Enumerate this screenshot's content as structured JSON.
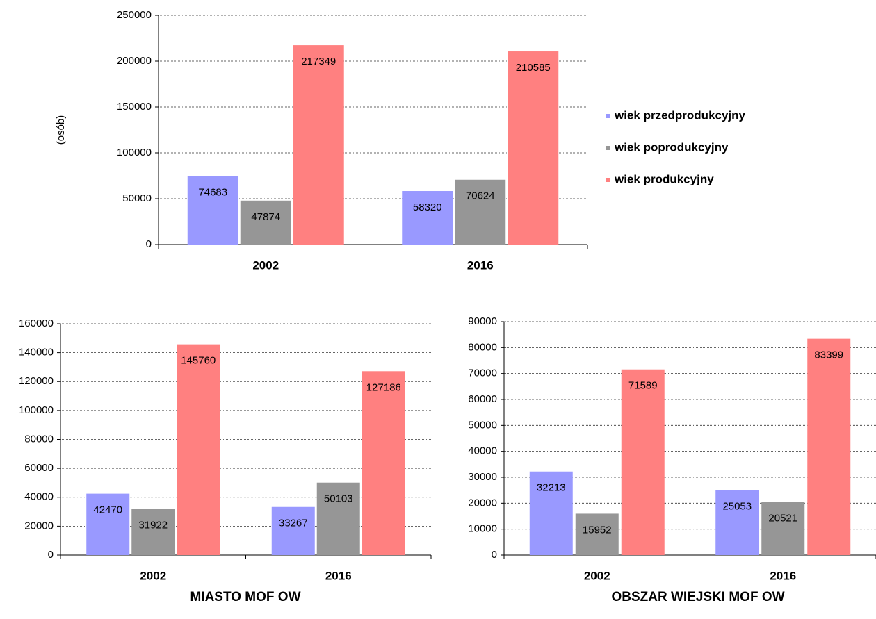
{
  "chart_data": [
    {
      "type": "bar",
      "ylabel": "(osób)",
      "categories": [
        "2002",
        "2016"
      ],
      "series": [
        {
          "name": "wiek przedprodukcyjny",
          "color": "#9999ff",
          "values": [
            74683,
            58320
          ]
        },
        {
          "name": "wiek poprodukcyjny",
          "color": "#969696",
          "values": [
            47874,
            70624
          ]
        },
        {
          "name": "wiek produkcyjny",
          "color": "#ff8080",
          "values": [
            217349,
            210585
          ]
        }
      ],
      "ylim": [
        0,
        250000
      ],
      "yticks": [
        0,
        50000,
        100000,
        150000,
        200000,
        250000
      ],
      "grid": true,
      "legend": "right"
    },
    {
      "type": "bar",
      "title": "MIASTO MOF OW",
      "categories": [
        "2002",
        "2016"
      ],
      "series": [
        {
          "color": "#9999ff",
          "values": [
            42470,
            33267
          ]
        },
        {
          "color": "#969696",
          "values": [
            31922,
            50103
          ]
        },
        {
          "color": "#ff8080",
          "values": [
            145760,
            127186
          ]
        }
      ],
      "ylim": [
        0,
        160000
      ],
      "yticks": [
        0,
        20000,
        40000,
        60000,
        80000,
        100000,
        120000,
        140000,
        160000
      ],
      "grid": true
    },
    {
      "type": "bar",
      "title": "OBSZAR WIEJSKI MOF OW",
      "categories": [
        "2002",
        "2016"
      ],
      "series": [
        {
          "color": "#9999ff",
          "values": [
            32213,
            25053
          ]
        },
        {
          "color": "#969696",
          "values": [
            15952,
            20521
          ]
        },
        {
          "color": "#ff8080",
          "values": [
            71589,
            83399
          ]
        }
      ],
      "ylim": [
        0,
        90000
      ],
      "yticks": [
        0,
        10000,
        20000,
        30000,
        40000,
        50000,
        60000,
        70000,
        80000,
        90000
      ],
      "grid": true
    }
  ]
}
